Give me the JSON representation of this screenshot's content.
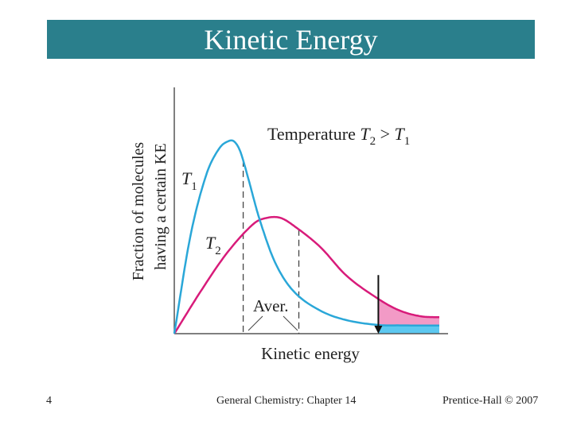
{
  "slide": {
    "title": "Kinetic Energy",
    "number": "4",
    "footer_center": "General Chemistry: Chapter 14",
    "footer_right": "Prentice-Hall © 2007"
  },
  "colors": {
    "title_bg": "#2a7f8c",
    "t1_curve": "#2aa7d8",
    "t2_curve": "#d81b7a",
    "t2_fill": "#f29ac6",
    "t1_fill": "#5cc8f0"
  },
  "chart_data": {
    "type": "line",
    "title": "Temperature T2 > T1",
    "title_parts": {
      "prefix": "Temperature ",
      "a": "T",
      "a_sub": "2",
      "op": " > ",
      "b": "T",
      "b_sub": "1"
    },
    "xlabel": "Kinetic energy",
    "ylabel_line1": "Fraction of molecules",
    "ylabel_line2": "having a certain KE",
    "xlim": [
      0,
      10
    ],
    "ylim": [
      0,
      1
    ],
    "grid": false,
    "threshold_x": 7.7,
    "average_label": "Aver.",
    "series": [
      {
        "name": "T1",
        "label": "T",
        "label_sub": "1",
        "color": "#2aa7d8",
        "x": [
          0,
          0.6,
          1.2,
          1.7,
          2.1,
          2.3,
          2.5,
          2.8,
          3.2,
          3.8,
          4.5,
          5.5,
          6.5,
          7.7,
          8.5,
          10
        ],
        "y": [
          0,
          0.5,
          0.82,
          0.96,
          1.0,
          0.99,
          0.94,
          0.8,
          0.6,
          0.37,
          0.22,
          0.12,
          0.07,
          0.045,
          0.043,
          0.042
        ],
        "average_x": 2.6
      },
      {
        "name": "T2",
        "label": "T",
        "label_sub": "2",
        "color": "#d81b7a",
        "x": [
          0,
          1.0,
          2.0,
          3.0,
          3.5,
          4.0,
          4.5,
          5.5,
          6.5,
          7.7,
          8.5,
          9.3,
          10
        ],
        "y": [
          0,
          0.22,
          0.42,
          0.57,
          0.6,
          0.6,
          0.56,
          0.45,
          0.3,
          0.18,
          0.12,
          0.09,
          0.085
        ],
        "average_x": 4.7
      }
    ]
  }
}
